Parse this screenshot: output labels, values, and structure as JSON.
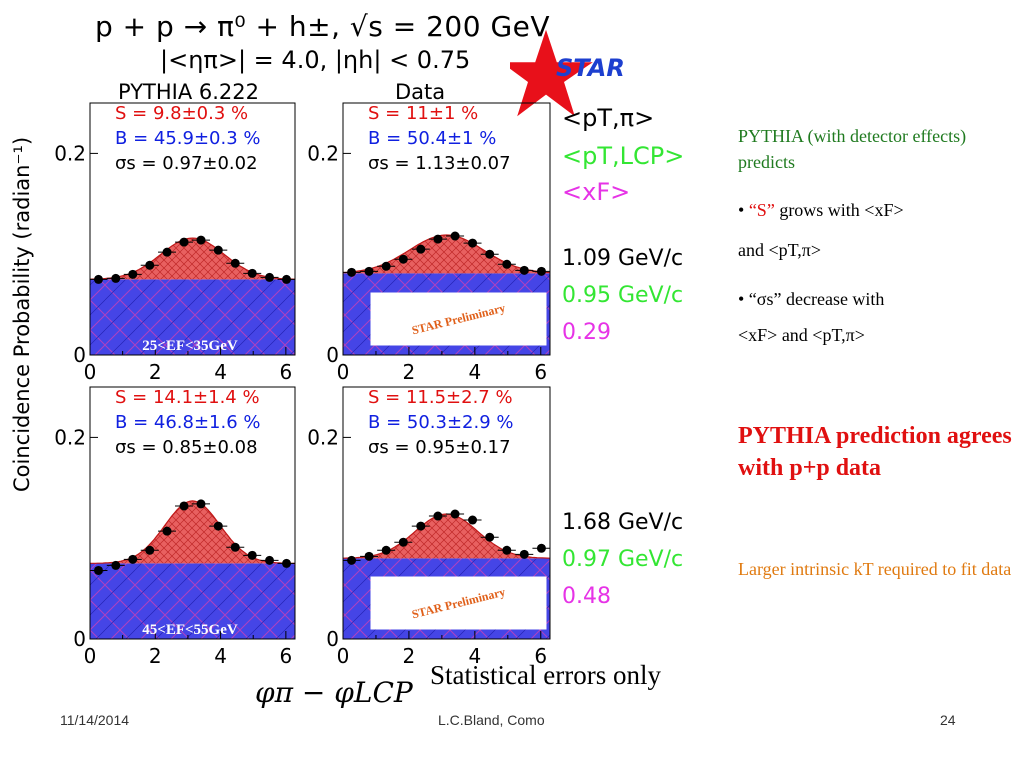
{
  "header": {
    "line1": "p + p → π⁰ + h±, √s = 200 GeV",
    "line2": "|<ηπ>| = 4.0, |ηh| < 0.75",
    "col_left": "PYTHIA 6.222",
    "col_right": "Data",
    "star_label": "STAR"
  },
  "axes": {
    "ylabel": "Coincidence Probability (radian⁻¹)",
    "xlabel": "φπ − φLCP",
    "y_ticks": [
      "0.2",
      "0"
    ],
    "x_ticks": [
      "0",
      "2",
      "4",
      "6"
    ]
  },
  "legend": {
    "items": [
      {
        "label": "<pT,π>",
        "color": "#000000"
      },
      {
        "label": "<pT,LCP>",
        "color": "#33e633"
      },
      {
        "label": "<xF>",
        "color": "#e633e6"
      }
    ]
  },
  "row_values": [
    [
      {
        "text": "1.09 GeV/c",
        "color": "#000000"
      },
      {
        "text": "0.95 GeV/c",
        "color": "#33e633"
      },
      {
        "text": "0.29",
        "color": "#e633e6"
      }
    ],
    [
      {
        "text": "1.68 GeV/c",
        "color": "#000000"
      },
      {
        "text": "0.97 GeV/c",
        "color": "#33e633"
      },
      {
        "text": "0.48",
        "color": "#e633e6"
      }
    ]
  ],
  "chart_data": [
    {
      "type": "scatter",
      "xlim": [
        0,
        6.28
      ],
      "ylim": [
        0,
        0.25
      ],
      "fit": {
        "S": "S = 9.8±0.3 %",
        "B": "B = 45.9±0.3 %",
        "sigma": "σs = 0.97±0.02"
      },
      "baseline": 0.075,
      "gauss": {
        "amp": 0.041,
        "mu": 3.14,
        "sigma": 0.97
      },
      "x": [
        0.26,
        0.79,
        1.31,
        1.83,
        2.36,
        2.88,
        3.4,
        3.93,
        4.45,
        4.97,
        5.5,
        6.02
      ],
      "y": [
        0.075,
        0.076,
        0.08,
        0.089,
        0.102,
        0.112,
        0.114,
        0.104,
        0.091,
        0.081,
        0.077,
        0.075
      ],
      "energy_range": "25<EF<35GeV",
      "preliminary": ""
    },
    {
      "type": "scatter",
      "xlim": [
        0,
        6.28
      ],
      "ylim": [
        0,
        0.25
      ],
      "fit": {
        "S": "S = 11±1 %",
        "B": "B = 50.4±1 %",
        "sigma": "σs = 1.13±0.07"
      },
      "baseline": 0.081,
      "gauss": {
        "amp": 0.038,
        "mu": 3.14,
        "sigma": 1.13
      },
      "x": [
        0.26,
        0.79,
        1.31,
        1.83,
        2.36,
        2.88,
        3.4,
        3.93,
        4.45,
        4.97,
        5.5,
        6.02
      ],
      "y": [
        0.082,
        0.083,
        0.088,
        0.095,
        0.105,
        0.115,
        0.118,
        0.111,
        0.1,
        0.09,
        0.084,
        0.083
      ],
      "energy_range": "",
      "preliminary": "STAR Preliminary"
    },
    {
      "type": "scatter",
      "xlim": [
        0,
        6.28
      ],
      "ylim": [
        0,
        0.25
      ],
      "fit": {
        "S": "S = 14.1±1.4 %",
        "B": "B = 46.8±1.6 %",
        "sigma": "σs = 0.85±0.08"
      },
      "baseline": 0.075,
      "gauss": {
        "amp": 0.062,
        "mu": 3.14,
        "sigma": 0.85
      },
      "x": [
        0.26,
        0.79,
        1.31,
        1.83,
        2.36,
        2.88,
        3.4,
        3.93,
        4.45,
        4.97,
        5.5,
        6.02
      ],
      "y": [
        0.068,
        0.073,
        0.079,
        0.088,
        0.107,
        0.132,
        0.134,
        0.112,
        0.091,
        0.083,
        0.078,
        0.075
      ],
      "energy_range": "45<EF<55GeV",
      "preliminary": ""
    },
    {
      "type": "scatter",
      "xlim": [
        0,
        6.28
      ],
      "ylim": [
        0,
        0.25
      ],
      "fit": {
        "S": "S = 11.5±2.7 %",
        "B": "B = 50.3±2.9 %",
        "sigma": "σs = 0.95±0.17"
      },
      "baseline": 0.08,
      "gauss": {
        "amp": 0.044,
        "mu": 3.14,
        "sigma": 0.95
      },
      "x": [
        0.26,
        0.79,
        1.31,
        1.83,
        2.36,
        2.88,
        3.4,
        3.93,
        4.45,
        4.97,
        5.5,
        6.02
      ],
      "y": [
        0.078,
        0.082,
        0.088,
        0.096,
        0.112,
        0.122,
        0.124,
        0.118,
        0.101,
        0.088,
        0.084,
        0.09
      ],
      "energy_range": "",
      "preliminary": "STAR Preliminary"
    }
  ],
  "right_panel": {
    "note": "PYTHIA (with  detector effects) predicts",
    "b1_quote": "“S”",
    "b1_rest": " grows with <xF>",
    "b1_line2": "and <pT,π>",
    "b2_line1": "• “σs” decrease with",
    "b2_line2": "<xF> and <pT,π>",
    "conclusion": "PYTHIA prediction agrees with p+p data",
    "kt_note": "Larger intrinsic kT required to fit data"
  },
  "footer_caption": "Statistical errors only",
  "footer": {
    "date": "11/14/2014",
    "center": "L.C.Bland, Como",
    "page": "24"
  },
  "colors": {
    "signal": "#e04040",
    "background": "#3a3ae0",
    "signal_text": "#e01010",
    "bkg_text": "#1020e0"
  }
}
